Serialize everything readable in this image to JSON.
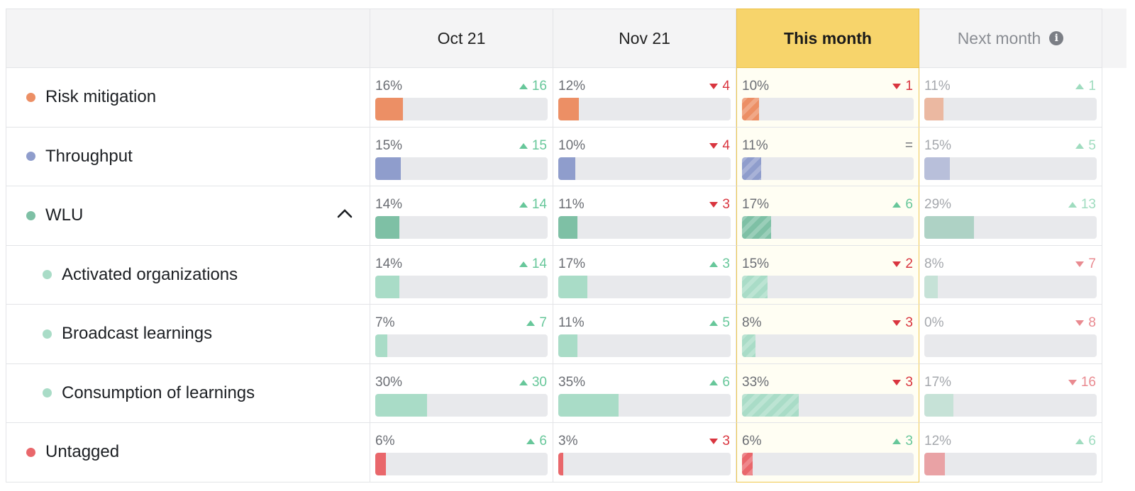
{
  "header": {
    "months": [
      "Oct 21",
      "Nov 21",
      "This month",
      "Next month"
    ],
    "info_icon": "info-icon"
  },
  "colors": {
    "risk": "#ec8f65",
    "throughput": "#8f9dcc",
    "wlu": "#7ec0a5",
    "sub": "#a9dcc7",
    "untagged": "#e9676b",
    "up": "#67c79a",
    "down": "#d9353f",
    "current_header": "#f7d46b"
  },
  "rows": [
    {
      "label": "Risk mitigation",
      "color": "#ec8f65",
      "indent": false,
      "expandable": false,
      "cells": [
        {
          "pct": "16%",
          "value": 16,
          "dir": "up",
          "delta": "16"
        },
        {
          "pct": "12%",
          "value": 12,
          "dir": "down",
          "delta": "4"
        },
        {
          "pct": "10%",
          "value": 10,
          "dir": "down",
          "delta": "1"
        },
        {
          "pct": "11%",
          "value": 11,
          "dir": "up",
          "delta": "1"
        }
      ]
    },
    {
      "label": "Throughput",
      "color": "#8f9dcc",
      "indent": false,
      "expandable": false,
      "cells": [
        {
          "pct": "15%",
          "value": 15,
          "dir": "up",
          "delta": "15"
        },
        {
          "pct": "10%",
          "value": 10,
          "dir": "down",
          "delta": "4"
        },
        {
          "pct": "11%",
          "value": 11,
          "dir": "eq",
          "delta": "="
        },
        {
          "pct": "15%",
          "value": 15,
          "dir": "up",
          "delta": "5"
        }
      ]
    },
    {
      "label": "WLU",
      "color": "#7ec0a5",
      "indent": false,
      "expandable": true,
      "cells": [
        {
          "pct": "14%",
          "value": 14,
          "dir": "up",
          "delta": "14"
        },
        {
          "pct": "11%",
          "value": 11,
          "dir": "down",
          "delta": "3"
        },
        {
          "pct": "17%",
          "value": 17,
          "dir": "up",
          "delta": "6"
        },
        {
          "pct": "29%",
          "value": 29,
          "dir": "up",
          "delta": "13"
        }
      ]
    },
    {
      "label": "Activated organizations",
      "color": "#a9dcc7",
      "indent": true,
      "expandable": false,
      "cells": [
        {
          "pct": "14%",
          "value": 14,
          "dir": "up",
          "delta": "14"
        },
        {
          "pct": "17%",
          "value": 17,
          "dir": "up",
          "delta": "3"
        },
        {
          "pct": "15%",
          "value": 15,
          "dir": "down",
          "delta": "2"
        },
        {
          "pct": "8%",
          "value": 8,
          "dir": "down",
          "delta": "7"
        }
      ]
    },
    {
      "label": "Broadcast learnings",
      "color": "#a9dcc7",
      "indent": true,
      "expandable": false,
      "cells": [
        {
          "pct": "7%",
          "value": 7,
          "dir": "up",
          "delta": "7"
        },
        {
          "pct": "11%",
          "value": 11,
          "dir": "up",
          "delta": "5"
        },
        {
          "pct": "8%",
          "value": 8,
          "dir": "down",
          "delta": "3"
        },
        {
          "pct": "0%",
          "value": 0,
          "dir": "down",
          "delta": "8"
        }
      ]
    },
    {
      "label": "Consumption of learnings",
      "color": "#a9dcc7",
      "indent": true,
      "expandable": false,
      "cells": [
        {
          "pct": "30%",
          "value": 30,
          "dir": "up",
          "delta": "30"
        },
        {
          "pct": "35%",
          "value": 35,
          "dir": "up",
          "delta": "6"
        },
        {
          "pct": "33%",
          "value": 33,
          "dir": "down",
          "delta": "3"
        },
        {
          "pct": "17%",
          "value": 17,
          "dir": "down",
          "delta": "16"
        }
      ]
    },
    {
      "label": "Untagged",
      "color": "#e9676b",
      "indent": false,
      "expandable": false,
      "cells": [
        {
          "pct": "6%",
          "value": 6,
          "dir": "up",
          "delta": "6"
        },
        {
          "pct": "3%",
          "value": 3,
          "dir": "down",
          "delta": "3"
        },
        {
          "pct": "6%",
          "value": 6,
          "dir": "up",
          "delta": "3"
        },
        {
          "pct": "12%",
          "value": 12,
          "dir": "up",
          "delta": "6"
        }
      ]
    }
  ]
}
